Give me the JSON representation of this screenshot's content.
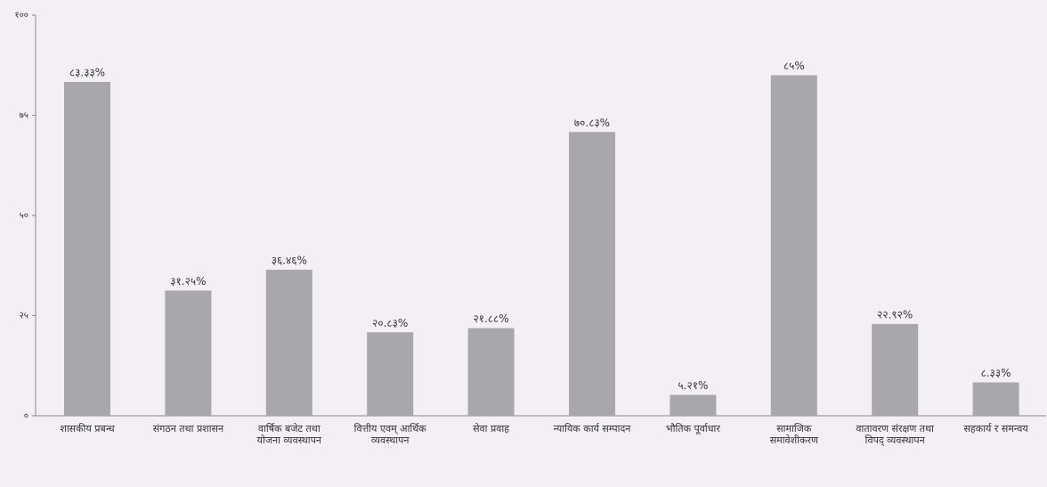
{
  "chart_data": {
    "type": "bar",
    "categories": [
      "शासकीय प्रबन्ध",
      "संगठन तथा प्रशासन",
      "वार्षिक बजेट तथा योजना व्यवस्थापन",
      "वित्तीय एवम् आर्थिक व्यवस्थापन",
      "सेवा प्रवाह",
      "न्यायिक कार्य सम्पादन",
      "भौतिक पूर्वाधार",
      "सामाजिक समावेशीकरण",
      "वातावरण संरक्षण तथा विपद् व्यवस्थापन",
      "सहकार्य र समन्वय"
    ],
    "values": [
      83.33,
      31.25,
      36.46,
      20.83,
      21.88,
      70.83,
      5.21,
      85,
      22.92,
      8.33
    ],
    "value_labels": [
      "८३.३३%",
      "३१.२५%",
      "३६.४६%",
      "२०.८३%",
      "२१.८८%",
      "७०.८३%",
      "५.२१%",
      "८५%",
      "२२.९२%",
      "८.३३%"
    ],
    "color": "#a8a7ab",
    "ylim": [
      0,
      100
    ],
    "yticks": [
      {
        "value": 0,
        "label": "०"
      },
      {
        "value": 25,
        "label": "२५"
      },
      {
        "value": 50,
        "label": "५०"
      },
      {
        "value": 75,
        "label": "७५"
      },
      {
        "value": 100,
        "label": "१००"
      }
    ],
    "grid": false
  }
}
